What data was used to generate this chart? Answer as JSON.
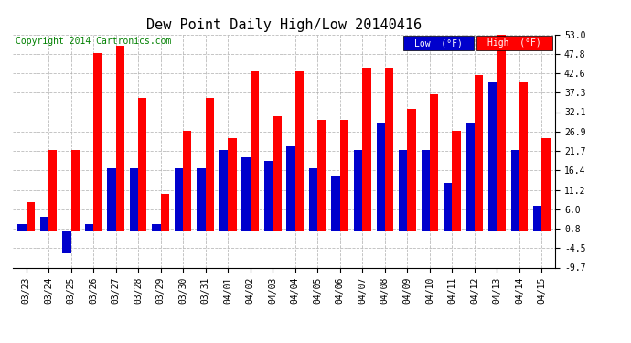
{
  "title": "Dew Point Daily High/Low 20140416",
  "copyright": "Copyright 2014 Cartronics.com",
  "categories": [
    "03/23",
    "03/24",
    "03/25",
    "03/26",
    "03/27",
    "03/28",
    "03/29",
    "03/30",
    "03/31",
    "04/01",
    "04/02",
    "04/03",
    "04/04",
    "04/05",
    "04/06",
    "04/07",
    "04/08",
    "04/09",
    "04/10",
    "04/11",
    "04/12",
    "04/13",
    "04/14",
    "04/15"
  ],
  "high_values": [
    8.0,
    22.0,
    22.0,
    48.0,
    50.0,
    36.0,
    10.0,
    27.0,
    36.0,
    25.0,
    43.0,
    31.0,
    43.0,
    30.0,
    30.0,
    44.0,
    44.0,
    33.0,
    37.0,
    27.0,
    42.0,
    55.0,
    40.0,
    25.0
  ],
  "low_values": [
    2.0,
    4.0,
    -6.0,
    2.0,
    17.0,
    17.0,
    2.0,
    17.0,
    17.0,
    22.0,
    20.0,
    19.0,
    23.0,
    17.0,
    15.0,
    22.0,
    29.0,
    22.0,
    22.0,
    13.0,
    29.0,
    40.0,
    22.0,
    7.0
  ],
  "ylim": [
    -9.7,
    53.0
  ],
  "yticks": [
    -9.7,
    -4.5,
    0.8,
    6.0,
    11.2,
    16.4,
    21.7,
    26.9,
    32.1,
    37.3,
    42.6,
    47.8,
    53.0
  ],
  "ytick_labels": [
    "-9.7",
    "-4.5",
    "0.8",
    "6.0",
    "11.2",
    "16.4",
    "21.7",
    "26.9",
    "32.1",
    "37.3",
    "42.6",
    "47.8",
    "53.0"
  ],
  "bar_width": 0.38,
  "high_color": "#ff0000",
  "low_color": "#0000cc",
  "bg_color": "#ffffff",
  "grid_color": "#aaaaaa",
  "title_fontsize": 11,
  "tick_fontsize": 7,
  "copyright_fontsize": 7
}
